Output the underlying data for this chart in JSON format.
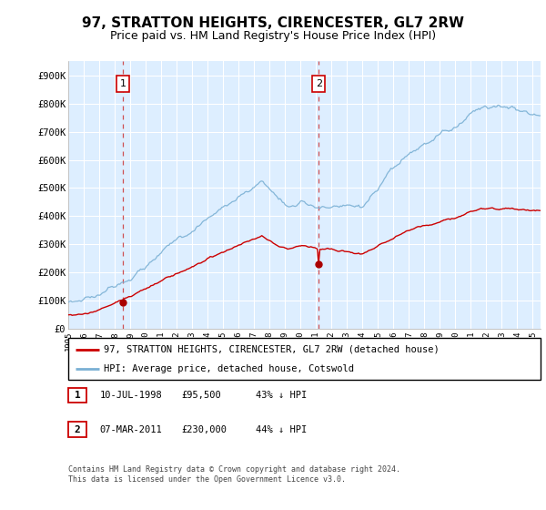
{
  "title": "97, STRATTON HEIGHTS, CIRENCESTER, GL7 2RW",
  "subtitle": "Price paid vs. HM Land Registry's House Price Index (HPI)",
  "title_fontsize": 11,
  "subtitle_fontsize": 9,
  "ylabel_ticks": [
    "£0",
    "£100K",
    "£200K",
    "£300K",
    "£400K",
    "£500K",
    "£600K",
    "£700K",
    "£800K",
    "£900K"
  ],
  "ytick_values": [
    0,
    100000,
    200000,
    300000,
    400000,
    500000,
    600000,
    700000,
    800000,
    900000
  ],
  "ylim": [
    0,
    950000
  ],
  "background_color": "#ffffff",
  "plot_bg_color": "#ddeeff",
  "grid_color": "#ffffff",
  "legend_entries": [
    "97, STRATTON HEIGHTS, CIRENCESTER, GL7 2RW (detached house)",
    "HPI: Average price, detached house, Cotswold"
  ],
  "legend_colors": [
    "#cc0000",
    "#7ab0d4"
  ],
  "sale_points": [
    {
      "date_num": 1998.53,
      "price": 95500,
      "label": "1",
      "color": "#aa0000"
    },
    {
      "date_num": 2011.18,
      "price": 230000,
      "label": "2",
      "color": "#aa0000"
    }
  ],
  "annotation_box_color": "#ffffff",
  "annotation_border_color": "#cc0000",
  "footnote": "Contains HM Land Registry data © Crown copyright and database right 2024.\nThis data is licensed under the Open Government Licence v3.0.",
  "table_rows": [
    {
      "num": "1",
      "date": "10-JUL-1998",
      "price": "£95,500",
      "pct": "43% ↓ HPI"
    },
    {
      "num": "2",
      "date": "07-MAR-2011",
      "price": "£230,000",
      "pct": "44% ↓ HPI"
    }
  ],
  "xlim_start": 1995.0,
  "xlim_end": 2025.5,
  "xtick_years": [
    1995,
    1996,
    1997,
    1998,
    1999,
    2000,
    2001,
    2002,
    2003,
    2004,
    2005,
    2006,
    2007,
    2008,
    2009,
    2010,
    2011,
    2012,
    2013,
    2014,
    2015,
    2016,
    2017,
    2018,
    2019,
    2020,
    2021,
    2022,
    2023,
    2024,
    2025
  ],
  "vline_dates": [
    1998.53,
    2011.18
  ],
  "vline_color": "#cc3333"
}
